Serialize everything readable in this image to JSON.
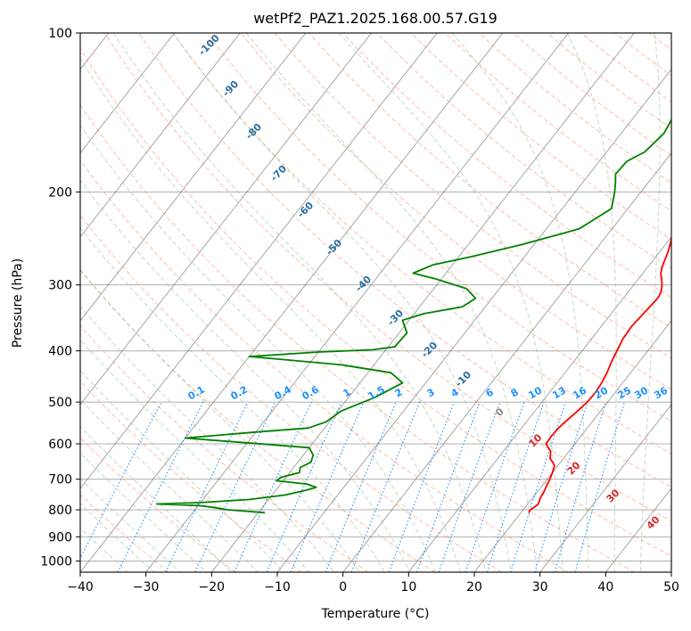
{
  "chart_data": {
    "type": "line",
    "title": "wetPf2_PAZ1.2025.168.00.57.G19",
    "xlabel": "Temperature (°C)",
    "ylabel": "Pressure (hPa)",
    "xlim": [
      -40,
      50
    ],
    "ylim": [
      1050,
      100
    ],
    "y_scale": "log",
    "grid": true,
    "x_ticks": [
      "−40",
      "−30",
      "−20",
      "−10",
      "0",
      "10",
      "20",
      "30",
      "40",
      "50"
    ],
    "y_ticks": [
      100,
      200,
      300,
      400,
      500,
      600,
      700,
      800,
      900,
      1000
    ],
    "series": [
      {
        "color": "#ff0000",
        "x": [
          21.2,
          21.1,
          21.4,
          21.6,
          21.2,
          21.0,
          20.7,
          20.4,
          20.0,
          19.5,
          18.8,
          18.0,
          17.6,
          17.2,
          16.4,
          15.6,
          15.5,
          15.6,
          16.0,
          16.5,
          16.9,
          17.0,
          16.8,
          16.4,
          15.8,
          15.3,
          14.8,
          14.6,
          14.9,
          15.2,
          15.2,
          14.9,
          14.3,
          13.5,
          12.8,
          12.2,
          11.8,
          11.3,
          10.6,
          9.8,
          8.8,
          7.7,
          6.9,
          6.5,
          6.0,
          5.4,
          4.6,
          3.8,
          3.0,
          2.3,
          1.9,
          1.5,
          1.2,
          1.1,
          1.4,
          1.7,
          1.6,
          1.6,
          1.8,
          2.3,
          3.2,
          4.3
        ],
        "p": [
          810,
          800,
          790,
          780,
          760,
          740,
          720,
          700,
          680,
          660,
          650,
          640,
          630,
          620,
          610,
          600,
          580,
          560,
          540,
          520,
          500,
          480,
          460,
          440,
          420,
          400,
          380,
          360,
          340,
          320,
          315,
          308,
          300,
          292,
          286,
          278,
          270,
          260,
          250,
          240,
          230,
          220,
          210,
          200,
          190,
          185,
          180,
          175,
          170,
          165,
          160,
          155,
          150,
          145,
          140,
          135,
          130,
          125,
          120,
          115,
          108,
          100
        ]
      },
      {
        "color": "#008000",
        "x": [
          -19.0,
          -22.0,
          -25.0,
          -28.0,
          -30.0,
          -36.5,
          -30.0,
          -23.0,
          -18.0,
          -15.5,
          -14.2,
          -16.0,
          -21.0,
          -20.8,
          -18.5,
          -19.0,
          -18.0,
          -18.5,
          -20.0,
          -40.0,
          -30.0,
          -22.5,
          -20.5,
          -19.5,
          -16.0,
          -13.5,
          -16.5,
          -25.0,
          -40.0,
          -30.0,
          -22.0,
          -19.0,
          -18.8,
          -21.0,
          -18.5,
          -13.5,
          -12.5,
          -15.0,
          -21.0,
          -25.0,
          -23.0,
          -18.0,
          -12.0,
          -5.0,
          -2.5,
          -4.0,
          -5.0,
          -6.0,
          -5.8,
          -4.2,
          -3.5,
          -4.0,
          -4.3,
          -3.8,
          -3.1,
          -2.7,
          -3.2,
          -2.3,
          -1.3,
          0.6,
          2.1
        ],
        "p": [
          810,
          805,
          800,
          790,
          785,
          780,
          775,
          765,
          750,
          735,
          725,
          715,
          705,
          695,
          680,
          665,
          650,
          630,
          610,
          585,
          570,
          560,
          545,
          520,
          490,
          460,
          440,
          425,
          410,
          402,
          398,
          393,
          370,
          350,
          340,
          330,
          318,
          305,
          292,
          285,
          275,
          265,
          252,
          235,
          215,
          200,
          192,
          185,
          175,
          168,
          155,
          145,
          138,
          130,
          124,
          118,
          112,
          107,
          103,
          100,
          98
        ]
      }
    ],
    "dry_adiabat_labels": [
      "-100",
      "-90",
      "-80",
      "-70",
      "-60",
      "-50",
      "-40",
      "-30",
      "-20",
      "-10"
    ],
    "mixing_ratio_labels": [
      "0.1",
      "0.2",
      "0.4",
      "0.6",
      "1",
      "1.5",
      "2",
      "3",
      "4",
      "6",
      "8",
      "10",
      "13",
      "16",
      "20",
      "25",
      "30",
      "36"
    ],
    "mixing_ratio_values": [
      0.1,
      0.2,
      0.4,
      0.6,
      1,
      1.5,
      2,
      3,
      4,
      6,
      8,
      10,
      13,
      16,
      20,
      25,
      30,
      36
    ],
    "moist_adiabat_labels": [
      "0",
      "10",
      "20",
      "30",
      "40"
    ],
    "colors": {
      "temperature": "#ff0000",
      "dewpoint": "#008000",
      "isotherms": "#4a4a4a",
      "dry_adiabats": "#ffa07a",
      "moist_adiabats": "#8fbc8f",
      "mixing_ratio": "#1e90ff",
      "label_dark": "#2a6f9e",
      "label_moist": "#d62728"
    }
  }
}
